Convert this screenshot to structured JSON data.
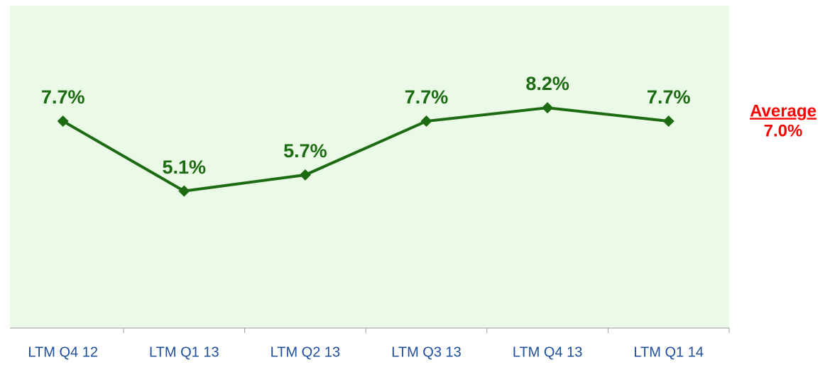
{
  "chart_data": {
    "type": "line",
    "categories": [
      "LTM Q4 12",
      "LTM Q1 13",
      "LTM Q2 13",
      "LTM Q3 13",
      "LTM Q4 13",
      "LTM Q1 14"
    ],
    "series": [
      {
        "color": "#1c6b12",
        "values": [
          7.7,
          5.1,
          5.7,
          7.7,
          8.2,
          7.7
        ],
        "value_labels": [
          "7.7%",
          "5.1%",
          "5.7%",
          "7.7%",
          "8.2%",
          "7.7%"
        ]
      }
    ],
    "ylim": [
      0,
      12
    ],
    "annotations": [
      "Average",
      "7.0%"
    ]
  }
}
